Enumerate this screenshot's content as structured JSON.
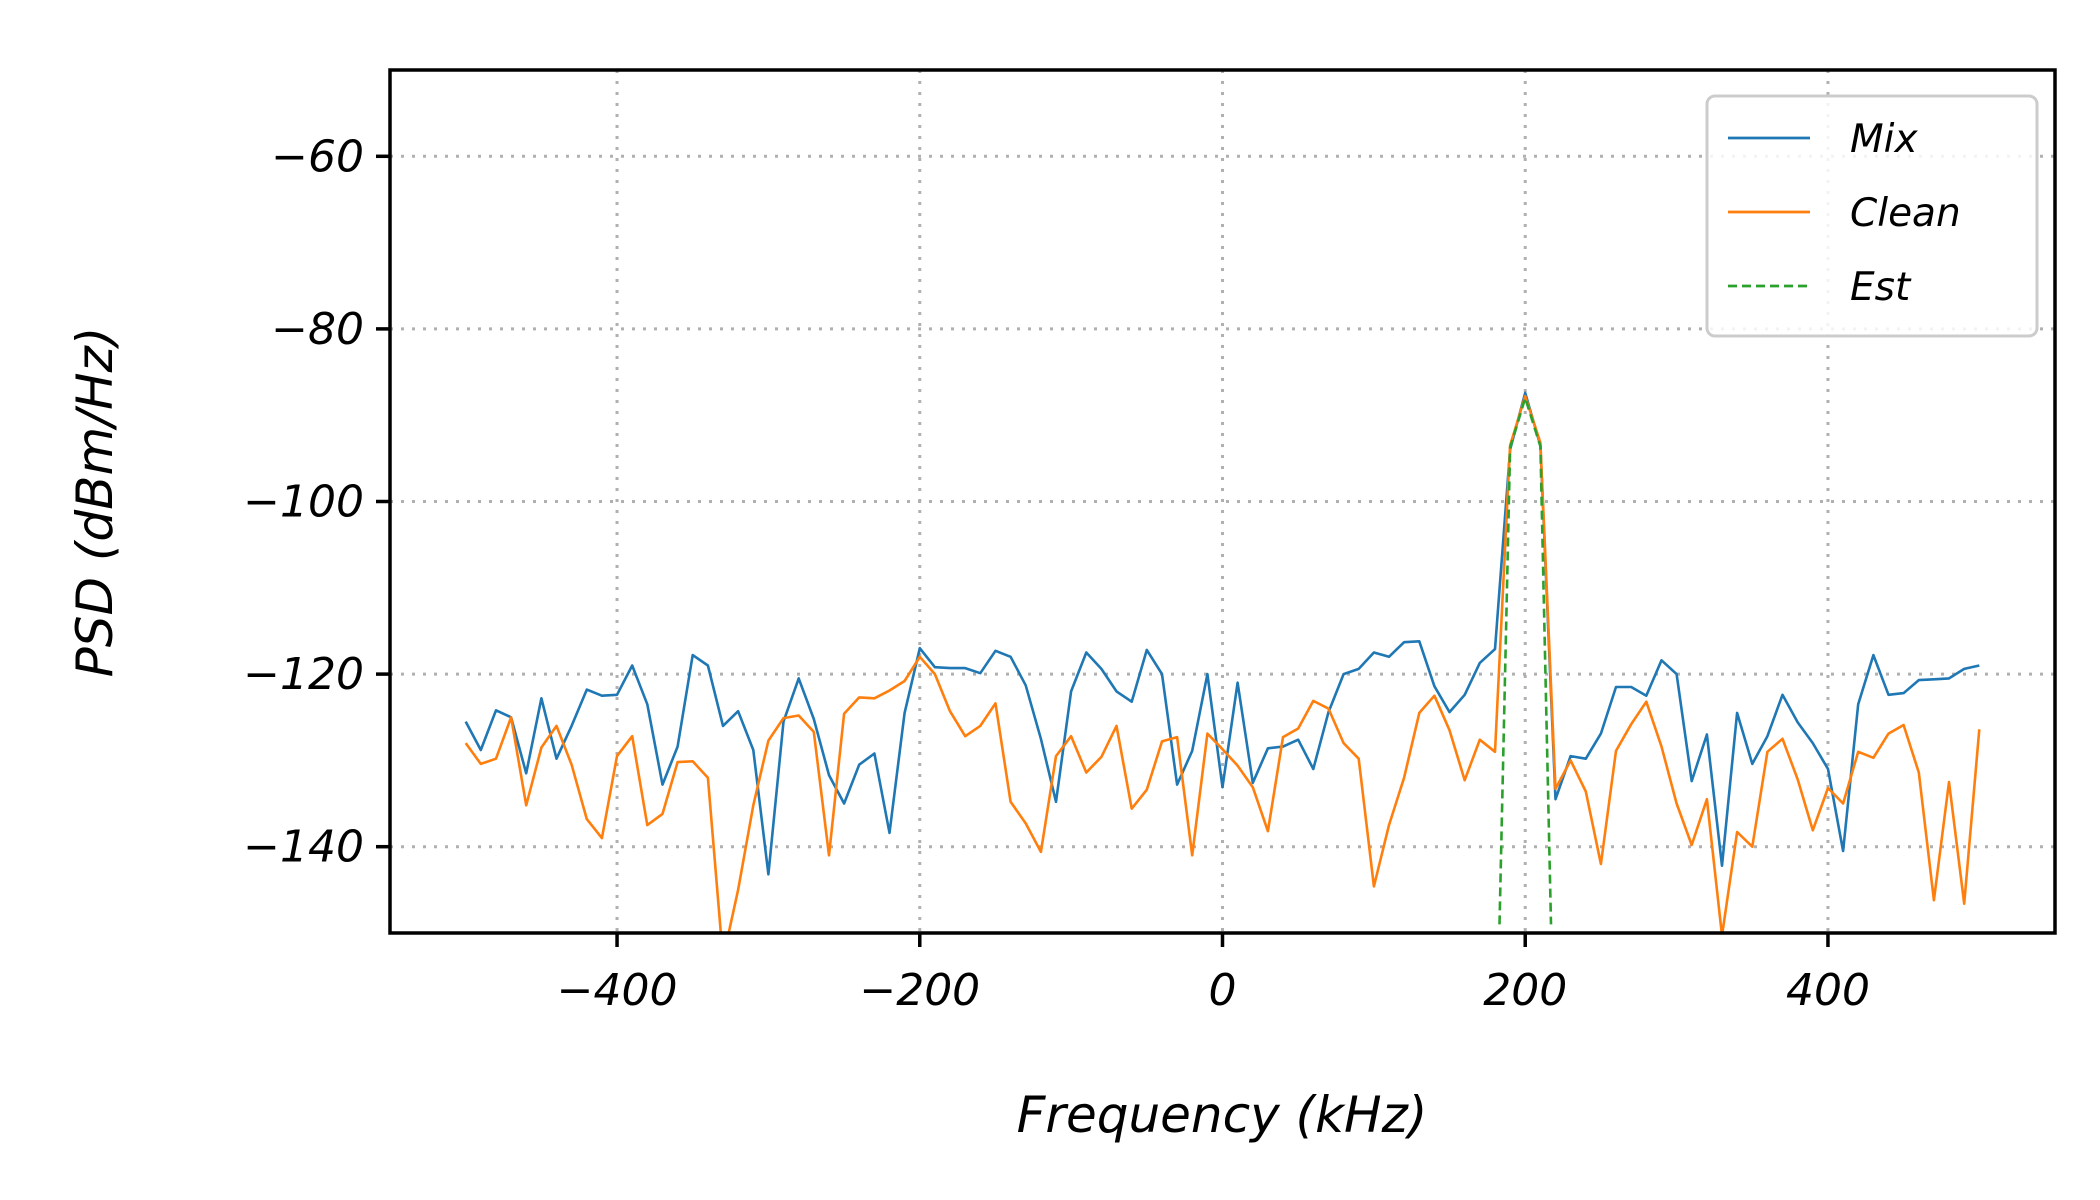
{
  "chart_data": {
    "type": "line",
    "xlabel": "Frequency (kHz)",
    "ylabel": "PSD (dBm/Hz)",
    "xlim": [
      -550,
      550
    ],
    "ylim": [
      -150,
      -50
    ],
    "xticks": [
      -400,
      -200,
      0,
      200,
      400
    ],
    "yticks": [
      -60,
      -80,
      -100,
      -120,
      -140
    ],
    "xtick_labels": [
      "−400",
      "−200",
      "0",
      "200",
      "400"
    ],
    "ytick_labels": [
      "−60",
      "−80",
      "−100",
      "−120",
      "−140"
    ],
    "grid": true,
    "legend_position": "top-right",
    "series": [
      {
        "name": "Mix",
        "color": "#1f77b4",
        "dash": "solid",
        "x": [
          -500,
          -490,
          -480,
          -470,
          -460,
          -450,
          -440,
          -430,
          -420,
          -410,
          -400,
          -390,
          -380,
          -370,
          -360,
          -350,
          -340,
          -330,
          -320,
          -310,
          -300,
          -290,
          -280,
          -270,
          -260,
          -250,
          -240,
          -230,
          -220,
          -210,
          -200,
          -190,
          -180,
          -170,
          -160,
          -150,
          -140,
          -130,
          -120,
          -110,
          -100,
          -90,
          -80,
          -70,
          -60,
          -50,
          -40,
          -30,
          -20,
          -10,
          0,
          10,
          20,
          30,
          40,
          50,
          60,
          70,
          80,
          90,
          100,
          110,
          120,
          130,
          140,
          150,
          160,
          170,
          180,
          190,
          200,
          210,
          220,
          230,
          240,
          250,
          260,
          270,
          280,
          290,
          300,
          310,
          320,
          330,
          340,
          350,
          360,
          370,
          380,
          390,
          400,
          410,
          420,
          430,
          440,
          450,
          460,
          470,
          480,
          490,
          500
        ],
        "y": [
          -125.5,
          -128.8,
          -124.2,
          -125.0,
          -131.5,
          -122.8,
          -129.8,
          -126.0,
          -121.8,
          -122.5,
          -122.4,
          -119.0,
          -123.5,
          -132.8,
          -128.4,
          -117.8,
          -119.0,
          -126.0,
          -124.3,
          -128.8,
          -143.2,
          -125.5,
          -120.5,
          -125.2,
          -131.7,
          -135.0,
          -130.5,
          -129.2,
          -138.4,
          -124.5,
          -117.0,
          -119.2,
          -119.3,
          -119.3,
          -119.9,
          -117.3,
          -118.0,
          -121.3,
          -127.5,
          -134.8,
          -122.0,
          -117.5,
          -119.4,
          -122.0,
          -123.2,
          -117.2,
          -120.0,
          -132.8,
          -128.9,
          -120.0,
          -133.1,
          -121.0,
          -132.6,
          -128.6,
          -128.4,
          -127.6,
          -131.0,
          -124.4,
          -120.0,
          -119.4,
          -117.5,
          -118.0,
          -116.3,
          -116.2,
          -121.4,
          -124.4,
          -122.4,
          -118.7,
          -117.1,
          -94.0,
          -87.4,
          -93.5,
          -134.5,
          -129.5,
          -129.8,
          -126.9,
          -121.5,
          -121.5,
          -122.5,
          -118.4,
          -120.0,
          -132.4,
          -127.0,
          -142.2,
          -124.5,
          -130.4,
          -127.2,
          -122.4,
          -125.6,
          -128.0,
          -131.0,
          -140.5,
          -123.5,
          -117.8,
          -122.4,
          -122.2,
          -120.7,
          -120.6,
          -120.5,
          -119.4,
          -119.0
        ]
      },
      {
        "name": "Clean",
        "color": "#ff7f0e",
        "dash": "solid",
        "x": [
          -500,
          -490,
          -480,
          -470,
          -460,
          -450,
          -440,
          -430,
          -420,
          -410,
          -400,
          -390,
          -380,
          -370,
          -360,
          -350,
          -340,
          -330,
          -320,
          -310,
          -300,
          -290,
          -280,
          -270,
          -260,
          -250,
          -240,
          -230,
          -220,
          -210,
          -200,
          -190,
          -180,
          -170,
          -160,
          -150,
          -140,
          -130,
          -120,
          -110,
          -100,
          -90,
          -80,
          -70,
          -60,
          -50,
          -40,
          -30,
          -20,
          -10,
          0,
          10,
          20,
          30,
          40,
          50,
          60,
          70,
          80,
          90,
          100,
          110,
          120,
          130,
          140,
          150,
          160,
          170,
          180,
          190,
          200,
          210,
          220,
          230,
          240,
          250,
          260,
          270,
          280,
          290,
          300,
          310,
          320,
          330,
          340,
          350,
          360,
          370,
          380,
          390,
          400,
          410,
          420,
          430,
          440,
          450,
          460,
          470,
          480,
          490,
          500
        ],
        "y": [
          -128.0,
          -130.4,
          -129.8,
          -125.0,
          -135.2,
          -128.5,
          -126.0,
          -130.5,
          -136.8,
          -139.0,
          -129.5,
          -127.2,
          -137.5,
          -136.2,
          -130.2,
          -130.1,
          -132.0,
          -153.0,
          -145.0,
          -135.2,
          -127.7,
          -125.1,
          -124.8,
          -126.7,
          -141.0,
          -124.6,
          -122.7,
          -122.8,
          -121.9,
          -120.8,
          -118.0,
          -120.0,
          -124.3,
          -127.2,
          -126.0,
          -123.4,
          -134.8,
          -137.3,
          -140.6,
          -129.5,
          -127.2,
          -131.4,
          -129.6,
          -126.0,
          -135.6,
          -133.4,
          -127.8,
          -127.3,
          -141.0,
          -126.9,
          -128.7,
          -130.6,
          -133.1,
          -138.2,
          -127.3,
          -126.3,
          -123.1,
          -124.0,
          -128.0,
          -129.8,
          -144.6,
          -137.5,
          -132.0,
          -124.5,
          -122.5,
          -126.5,
          -132.3,
          -127.6,
          -129.0,
          -93.5,
          -87.8,
          -93.2,
          -133.3,
          -130.0,
          -133.6,
          -142.0,
          -128.9,
          -125.8,
          -123.2,
          -128.4,
          -135.0,
          -139.8,
          -134.5,
          -150.3,
          -138.3,
          -140.0,
          -129.0,
          -127.5,
          -132.2,
          -138.1,
          -133.2,
          -135.0,
          -129.0,
          -129.7,
          -126.9,
          -125.9,
          -131.4,
          -146.2,
          -132.5,
          -146.6,
          -126.4
        ]
      },
      {
        "name": "Est",
        "color": "#2ca02c",
        "dash": "dashed",
        "x": [
          183,
          190,
          200,
          210,
          217
        ],
        "y": [
          -149,
          -93.8,
          -88.0,
          -93.6,
          -149
        ]
      }
    ]
  }
}
